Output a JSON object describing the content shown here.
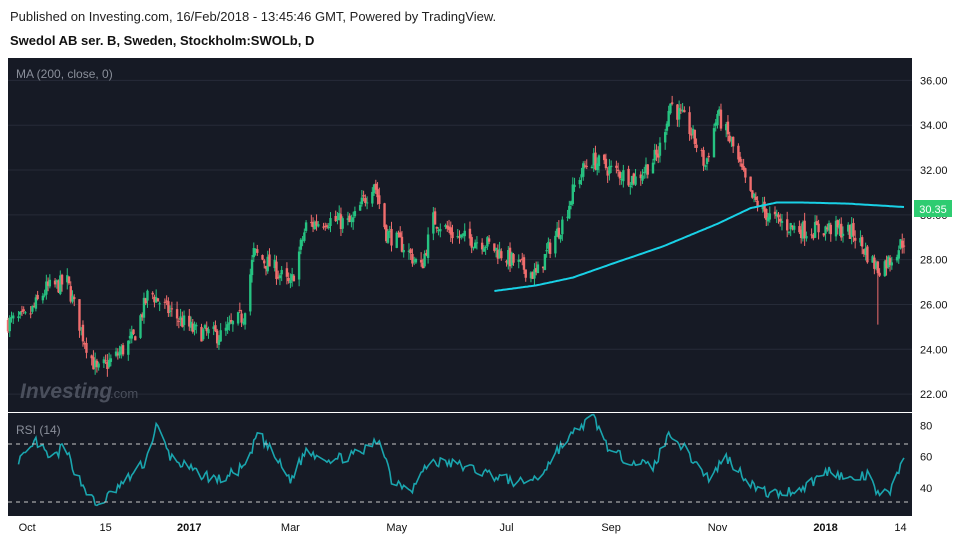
{
  "header": {
    "published": "Published on Investing.com, 16/Feb/2018 - 13:45:46 GMT, Powered by TradingView.",
    "symbol": "Swedol AB ser. B, Sweden, Stockholm:SWOLb, D"
  },
  "watermark": "Investing",
  "watermark_suffix": ".com",
  "colors": {
    "background": "#161a25",
    "up": "#26c281",
    "down": "#f06d6d",
    "ma": "#19d1e6",
    "rsi": "#1aa5ae",
    "last_price_tag": "#2ecc71",
    "grid": "#262b38",
    "axis_text": "#ffffff"
  },
  "chart_data": [
    {
      "type": "candlestick",
      "indicator_label": "MA (200, close, 0)",
      "last_price_label": "30.35",
      "ylim": [
        21.2,
        37.0
      ],
      "y_ticks": [
        "22.00",
        "24.00",
        "26.00",
        "28.00",
        "30.00",
        "32.00",
        "34.00",
        "36.00"
      ],
      "x_ticks": [
        "Oct",
        "15",
        "2017",
        "Mar",
        "May",
        "Jul",
        "Sep",
        "Nov",
        "2018",
        "14"
      ],
      "x_range": [
        "2016-09-20",
        "2018-02-16"
      ],
      "close_anchors": [
        [
          "2016-09-20",
          25.2
        ],
        [
          "2016-10-01",
          25.4
        ],
        [
          "2016-10-12",
          26.7
        ],
        [
          "2016-10-24",
          27.0
        ],
        [
          "2016-11-02",
          24.6
        ],
        [
          "2016-11-10",
          23.0
        ],
        [
          "2016-11-20",
          23.6
        ],
        [
          "2016-12-01",
          24.5
        ],
        [
          "2016-12-10",
          26.6
        ],
        [
          "2016-12-20",
          25.8
        ],
        [
          "2017-01-05",
          24.8
        ],
        [
          "2017-01-20",
          24.6
        ],
        [
          "2017-02-02",
          25.5
        ],
        [
          "2017-02-08",
          28.3
        ],
        [
          "2017-02-20",
          27.6
        ],
        [
          "2017-03-01",
          26.8
        ],
        [
          "2017-03-10",
          29.5
        ],
        [
          "2017-03-22",
          29.8
        ],
        [
          "2017-04-05",
          29.6
        ],
        [
          "2017-04-18",
          31.5
        ],
        [
          "2017-04-25",
          29.2
        ],
        [
          "2017-05-05",
          28.6
        ],
        [
          "2017-05-15",
          27.6
        ],
        [
          "2017-05-22",
          29.8
        ],
        [
          "2017-06-05",
          29.0
        ],
        [
          "2017-06-20",
          28.8
        ],
        [
          "2017-07-05",
          28.0
        ],
        [
          "2017-07-20",
          27.3
        ],
        [
          "2017-07-28",
          28.6
        ],
        [
          "2017-08-05",
          29.8
        ],
        [
          "2017-08-12",
          31.5
        ],
        [
          "2017-08-20",
          32.5
        ],
        [
          "2017-09-01",
          32.0
        ],
        [
          "2017-09-15",
          31.6
        ],
        [
          "2017-09-28",
          32.7
        ],
        [
          "2017-10-05",
          35.0
        ],
        [
          "2017-10-15",
          34.0
        ],
        [
          "2017-10-25",
          32.2
        ],
        [
          "2017-11-01",
          34.5
        ],
        [
          "2017-11-10",
          33.0
        ],
        [
          "2017-11-20",
          30.8
        ],
        [
          "2017-12-01",
          29.9
        ],
        [
          "2017-12-12",
          29.5
        ],
        [
          "2017-12-22",
          29.3
        ],
        [
          "2018-01-05",
          29.4
        ],
        [
          "2018-01-18",
          29.2
        ],
        [
          "2018-01-28",
          28.0
        ],
        [
          "2018-02-01",
          27.6
        ],
        [
          "2018-02-08",
          28.0
        ],
        [
          "2018-02-16",
          28.9
        ]
      ],
      "wick_low_outlier": [
        "2018-02-01",
        25.1
      ],
      "ma200_anchors": [
        [
          "2017-06-26",
          26.6
        ],
        [
          "2017-07-20",
          26.85
        ],
        [
          "2017-08-10",
          27.2
        ],
        [
          "2017-09-01",
          27.8
        ],
        [
          "2017-10-01",
          28.6
        ],
        [
          "2017-11-01",
          29.6
        ],
        [
          "2017-11-20",
          30.3
        ],
        [
          "2017-12-05",
          30.55
        ],
        [
          "2017-12-20",
          30.55
        ],
        [
          "2018-01-15",
          30.5
        ],
        [
          "2018-02-16",
          30.35
        ]
      ]
    },
    {
      "type": "line",
      "indicator_label": "RSI (14)",
      "ylim": [
        22,
        88
      ],
      "y_ticks": [
        "40",
        "60",
        "80"
      ],
      "reference_lines": [
        30,
        70
      ],
      "anchors": [
        [
          "2016-09-24",
          58
        ],
        [
          "2016-10-01",
          60
        ],
        [
          "2016-10-06",
          70
        ],
        [
          "2016-10-15",
          57
        ],
        [
          "2016-10-22",
          67
        ],
        [
          "2016-10-30",
          47
        ],
        [
          "2016-11-10",
          28
        ],
        [
          "2016-11-18",
          36
        ],
        [
          "2016-11-28",
          46
        ],
        [
          "2016-12-08",
          57
        ],
        [
          "2016-12-14",
          80
        ],
        [
          "2016-12-22",
          60
        ],
        [
          "2017-01-05",
          50
        ],
        [
          "2017-01-20",
          45
        ],
        [
          "2017-02-05",
          55
        ],
        [
          "2017-02-10",
          76
        ],
        [
          "2017-02-20",
          60
        ],
        [
          "2017-03-01",
          45
        ],
        [
          "2017-03-10",
          64
        ],
        [
          "2017-03-25",
          58
        ],
        [
          "2017-04-10",
          62
        ],
        [
          "2017-04-22",
          72
        ],
        [
          "2017-04-28",
          45
        ],
        [
          "2017-05-10",
          40
        ],
        [
          "2017-05-20",
          57
        ],
        [
          "2017-06-05",
          55
        ],
        [
          "2017-06-20",
          50
        ],
        [
          "2017-07-10",
          43
        ],
        [
          "2017-07-22",
          47
        ],
        [
          "2017-08-01",
          64
        ],
        [
          "2017-08-15",
          80
        ],
        [
          "2017-08-22",
          85
        ],
        [
          "2017-09-01",
          62
        ],
        [
          "2017-09-15",
          57
        ],
        [
          "2017-09-25",
          53
        ],
        [
          "2017-10-05",
          76
        ],
        [
          "2017-10-18",
          58
        ],
        [
          "2017-10-28",
          45
        ],
        [
          "2017-11-05",
          61
        ],
        [
          "2017-11-15",
          49
        ],
        [
          "2017-11-25",
          38
        ],
        [
          "2017-12-05",
          36
        ],
        [
          "2017-12-20",
          40
        ],
        [
          "2018-01-05",
          52
        ],
        [
          "2018-01-15",
          45
        ],
        [
          "2018-01-27",
          48
        ],
        [
          "2018-02-02",
          33
        ],
        [
          "2018-02-10",
          41
        ],
        [
          "2018-02-16",
          62
        ]
      ]
    }
  ]
}
